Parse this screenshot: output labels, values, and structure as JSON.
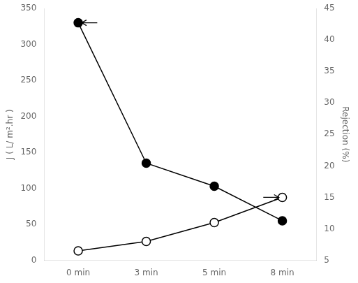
{
  "chart_data": {
    "type": "line",
    "categories": [
      "0 min",
      "3 min",
      "5 min",
      "8 min"
    ],
    "series": [
      {
        "values": [
          330,
          135,
          103,
          55
        ],
        "color": "black",
        "marker": "circle",
        "axis": "y"
      },
      {
        "values": [
          6.5,
          8.0,
          11.0,
          15.0
        ],
        "color": "black",
        "marker": "circle-open",
        "axis": "y2"
      }
    ],
    "ylabel": "J ( L/ m².hr )",
    "y2label": "Rejection (%)",
    "ylim": [
      0,
      350
    ],
    "yticks": [
      0,
      50,
      100,
      150,
      200,
      250,
      300,
      350
    ],
    "y2lim": [
      5,
      45
    ],
    "y2ticks": [
      5,
      10,
      15,
      20,
      25,
      30,
      35,
      40,
      45
    ],
    "grid": false,
    "annotations": [
      {
        "type": "arrow",
        "x_start": 0.28,
        "x_end": 0.05,
        "y": 330,
        "axis": "y"
      },
      {
        "type": "arrow",
        "x_start": 2.72,
        "x_end": 2.95,
        "y": 15.0,
        "axis": "y2"
      }
    ]
  }
}
